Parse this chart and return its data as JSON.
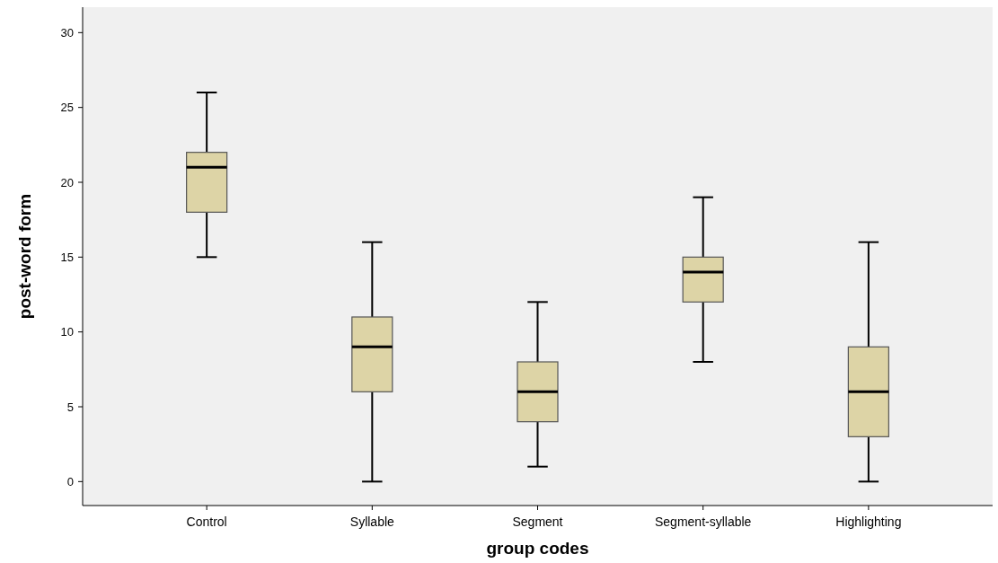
{
  "chart_data": {
    "type": "box",
    "xlabel": "group codes",
    "ylabel": "post-word form",
    "categories": [
      "Control",
      "Syllable",
      "Segment",
      "Segment-syllable",
      "Highlighting"
    ],
    "boxes": [
      {
        "low": 15,
        "q1": 18,
        "median": 21,
        "q3": 22,
        "high": 26
      },
      {
        "low": 0,
        "q1": 6,
        "median": 9,
        "q3": 11,
        "high": 16
      },
      {
        "low": 1,
        "q1": 4,
        "median": 6,
        "q3": 8,
        "high": 12
      },
      {
        "low": 8,
        "q1": 12,
        "median": 14,
        "q3": 15,
        "high": 19
      },
      {
        "low": 0,
        "q1": 3,
        "median": 6,
        "q3": 9,
        "high": 16
      }
    ],
    "color": "#ddd4a6",
    "ylim": [
      -1.6,
      31.7
    ],
    "yticks": [
      0,
      5,
      10,
      15,
      20,
      25,
      30
    ],
    "grid": false
  }
}
